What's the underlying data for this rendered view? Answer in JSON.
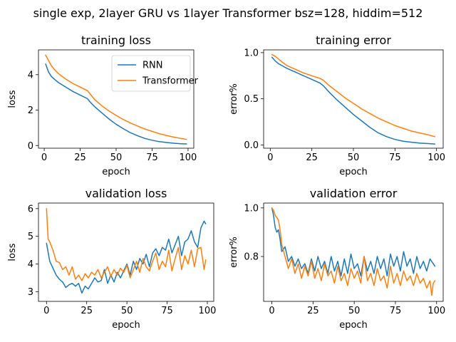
{
  "suptitle": "single exp, 2layer GRU vs 1layer Transformer bsz=128, hiddim=512",
  "colors": {
    "RNN": "#1f77b4",
    "Transformer": "#ff7f0e"
  },
  "chart_data": [
    {
      "type": "line",
      "title": "training loss",
      "xlabel": "epoch",
      "ylabel": "loss",
      "xlim": [
        -4,
        104
      ],
      "ylim": [
        -0.15,
        5.4
      ],
      "xticks": [
        0,
        25,
        50,
        75,
        100
      ],
      "xtick_labels": [
        "0",
        "25",
        "50",
        "75",
        "100"
      ],
      "yticks": [
        0,
        2,
        4
      ],
      "ytick_labels": [
        "0",
        "2",
        "4"
      ],
      "legend": "top-right",
      "series": [
        {
          "name": "RNN",
          "x": [
            1,
            3,
            5,
            7,
            10,
            15,
            20,
            25,
            30,
            32,
            35,
            40,
            45,
            50,
            55,
            60,
            65,
            70,
            75,
            80,
            85,
            90,
            95,
            99
          ],
          "y": [
            4.6,
            4.15,
            3.9,
            3.75,
            3.55,
            3.3,
            3.05,
            2.85,
            2.65,
            2.45,
            2.2,
            1.85,
            1.5,
            1.2,
            0.95,
            0.72,
            0.55,
            0.4,
            0.3,
            0.22,
            0.17,
            0.13,
            0.1,
            0.09
          ]
        },
        {
          "name": "Transformer",
          "x": [
            1,
            3,
            5,
            7,
            10,
            15,
            20,
            25,
            30,
            32,
            35,
            40,
            45,
            50,
            55,
            60,
            65,
            70,
            75,
            80,
            85,
            90,
            95,
            99
          ],
          "y": [
            5.1,
            4.8,
            4.5,
            4.3,
            4.05,
            3.75,
            3.5,
            3.3,
            3.1,
            2.9,
            2.6,
            2.25,
            1.95,
            1.7,
            1.47,
            1.27,
            1.1,
            0.93,
            0.8,
            0.67,
            0.57,
            0.48,
            0.4,
            0.35
          ]
        }
      ]
    },
    {
      "type": "line",
      "title": "training error",
      "xlabel": "epoch",
      "ylabel": "error%",
      "xlim": [
        -4,
        104
      ],
      "ylim": [
        -0.035,
        1.03
      ],
      "xticks": [
        0,
        25,
        50,
        75,
        100
      ],
      "xtick_labels": [
        "0",
        "25",
        "50",
        "75",
        "100"
      ],
      "yticks": [
        0,
        0.5,
        1.0
      ],
      "ytick_labels": [
        "0.0",
        "0.5",
        "1.0"
      ],
      "series": [
        {
          "name": "RNN",
          "x": [
            1,
            3,
            5,
            7,
            10,
            15,
            20,
            25,
            30,
            32,
            35,
            40,
            45,
            50,
            55,
            60,
            65,
            70,
            75,
            80,
            85,
            90,
            95,
            99
          ],
          "y": [
            0.95,
            0.91,
            0.88,
            0.86,
            0.83,
            0.79,
            0.75,
            0.71,
            0.67,
            0.64,
            0.58,
            0.49,
            0.41,
            0.33,
            0.26,
            0.19,
            0.13,
            0.09,
            0.06,
            0.04,
            0.03,
            0.02,
            0.015,
            0.01
          ]
        },
        {
          "name": "Transformer",
          "x": [
            1,
            3,
            5,
            7,
            10,
            15,
            20,
            25,
            30,
            32,
            35,
            40,
            45,
            50,
            55,
            60,
            65,
            70,
            75,
            80,
            85,
            90,
            95,
            99
          ],
          "y": [
            0.98,
            0.96,
            0.93,
            0.9,
            0.86,
            0.82,
            0.78,
            0.75,
            0.72,
            0.7,
            0.65,
            0.58,
            0.51,
            0.45,
            0.39,
            0.34,
            0.29,
            0.25,
            0.21,
            0.18,
            0.15,
            0.13,
            0.11,
            0.09
          ]
        }
      ]
    },
    {
      "type": "line",
      "title": "validation loss",
      "xlabel": "epoch",
      "ylabel": "loss",
      "xlim": [
        -5,
        104
      ],
      "ylim": [
        2.65,
        6.2
      ],
      "xticks": [
        0,
        25,
        50,
        75,
        100
      ],
      "xtick_labels": [
        "0",
        "25",
        "50",
        "75",
        "100"
      ],
      "yticks": [
        3,
        4,
        5,
        6
      ],
      "ytick_labels": [
        "3",
        "4",
        "5",
        "6"
      ],
      "series": [
        {
          "name": "RNN",
          "x": [
            0,
            2,
            4,
            6,
            8,
            10,
            12,
            14,
            16,
            18,
            20,
            22,
            24,
            26,
            28,
            30,
            32,
            34,
            36,
            38,
            40,
            42,
            44,
            46,
            48,
            50,
            52,
            54,
            56,
            58,
            60,
            62,
            64,
            66,
            68,
            70,
            72,
            74,
            76,
            78,
            80,
            82,
            84,
            86,
            88,
            90,
            92,
            94,
            96,
            98,
            99
          ],
          "y": [
            4.75,
            4.1,
            3.85,
            3.6,
            3.45,
            3.35,
            3.15,
            3.25,
            3.3,
            3.2,
            3.3,
            2.95,
            3.2,
            3.1,
            3.3,
            3.5,
            3.35,
            3.4,
            3.8,
            3.3,
            3.6,
            3.35,
            3.7,
            3.5,
            3.75,
            4.0,
            3.6,
            4.1,
            3.8,
            4.2,
            4.0,
            4.35,
            3.9,
            4.4,
            4.55,
            4.3,
            4.6,
            4.5,
            4.9,
            4.4,
            4.7,
            5.0,
            4.3,
            4.8,
            4.9,
            5.2,
            4.8,
            4.6,
            5.3,
            5.55,
            5.45
          ]
        },
        {
          "name": "Transformer",
          "x": [
            0,
            1,
            2,
            4,
            6,
            8,
            10,
            12,
            14,
            16,
            18,
            20,
            22,
            24,
            26,
            28,
            30,
            32,
            34,
            36,
            38,
            40,
            42,
            44,
            46,
            48,
            50,
            52,
            54,
            56,
            58,
            60,
            62,
            64,
            66,
            68,
            70,
            72,
            74,
            76,
            78,
            80,
            82,
            84,
            86,
            88,
            90,
            92,
            94,
            96,
            98,
            99
          ],
          "y": [
            6.0,
            4.9,
            4.8,
            4.5,
            4.1,
            4.05,
            3.8,
            3.9,
            3.6,
            3.9,
            3.45,
            3.6,
            3.4,
            3.65,
            3.5,
            3.7,
            3.6,
            3.8,
            3.5,
            3.7,
            3.9,
            3.55,
            3.8,
            3.6,
            3.85,
            3.7,
            3.95,
            3.5,
            3.8,
            4.1,
            3.7,
            4.2,
            3.9,
            3.75,
            4.1,
            4.4,
            3.8,
            4.1,
            3.9,
            4.5,
            3.75,
            4.2,
            4.6,
            3.8,
            4.3,
            4.0,
            4.5,
            3.9,
            4.55,
            4.6,
            3.8,
            4.15
          ]
        }
      ]
    },
    {
      "type": "line",
      "title": "validation error",
      "xlabel": "epoch",
      "ylabel": "error%",
      "xlim": [
        -5,
        104
      ],
      "ylim": [
        0.615,
        1.02
      ],
      "xticks": [
        0,
        25,
        50,
        75,
        100
      ],
      "xtick_labels": [
        "0",
        "25",
        "50",
        "75",
        "100"
      ],
      "yticks": [
        0.8,
        1.0
      ],
      "ytick_labels": [
        "0.8",
        "1.0"
      ],
      "series": [
        {
          "name": "RNN",
          "x": [
            0,
            1,
            2,
            3,
            4,
            5,
            6,
            8,
            10,
            12,
            14,
            16,
            18,
            20,
            22,
            24,
            26,
            28,
            30,
            32,
            34,
            36,
            38,
            40,
            42,
            44,
            46,
            48,
            50,
            52,
            54,
            56,
            58,
            60,
            62,
            64,
            66,
            68,
            70,
            72,
            74,
            76,
            78,
            80,
            82,
            84,
            86,
            88,
            90,
            92,
            94,
            96,
            98,
            99
          ],
          "y": [
            1.0,
            0.97,
            0.92,
            0.9,
            0.91,
            0.87,
            0.82,
            0.84,
            0.78,
            0.8,
            0.76,
            0.79,
            0.75,
            0.77,
            0.73,
            0.79,
            0.74,
            0.8,
            0.75,
            0.78,
            0.73,
            0.8,
            0.74,
            0.78,
            0.72,
            0.79,
            0.73,
            0.81,
            0.75,
            0.77,
            0.72,
            0.8,
            0.74,
            0.78,
            0.73,
            0.8,
            0.75,
            0.79,
            0.72,
            0.81,
            0.76,
            0.8,
            0.74,
            0.82,
            0.76,
            0.79,
            0.73,
            0.8,
            0.75,
            0.78,
            0.74,
            0.79,
            0.77,
            0.76
          ]
        },
        {
          "name": "Transformer",
          "x": [
            0,
            1,
            2,
            3,
            4,
            5,
            6,
            8,
            10,
            12,
            14,
            16,
            18,
            20,
            22,
            24,
            26,
            28,
            30,
            32,
            34,
            36,
            38,
            40,
            42,
            44,
            46,
            48,
            50,
            52,
            54,
            56,
            58,
            60,
            62,
            64,
            66,
            68,
            70,
            72,
            74,
            76,
            78,
            80,
            82,
            84,
            86,
            88,
            90,
            92,
            94,
            96,
            97,
            98,
            99
          ],
          "y": [
            1.0,
            0.99,
            0.97,
            0.96,
            0.95,
            0.91,
            0.85,
            0.8,
            0.75,
            0.79,
            0.73,
            0.77,
            0.71,
            0.76,
            0.72,
            0.78,
            0.71,
            0.75,
            0.7,
            0.77,
            0.72,
            0.74,
            0.69,
            0.76,
            0.7,
            0.73,
            0.68,
            0.75,
            0.71,
            0.74,
            0.69,
            0.8,
            0.7,
            0.73,
            0.68,
            0.75,
            0.7,
            0.72,
            0.67,
            0.76,
            0.69,
            0.73,
            0.68,
            0.74,
            0.7,
            0.72,
            0.68,
            0.73,
            0.69,
            0.71,
            0.67,
            0.7,
            0.64,
            0.69,
            0.7
          ]
        }
      ]
    }
  ]
}
